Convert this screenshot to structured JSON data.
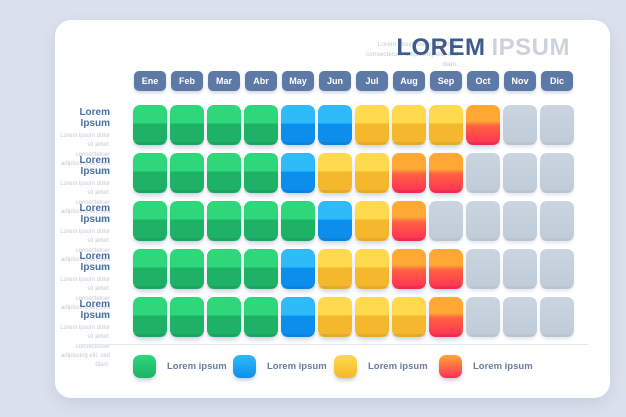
{
  "title": {
    "primary": "LOREM",
    "secondary": "IPSUM"
  },
  "subtitle": "Lorem ipsum dolor sit amet, consectetuer adipiscing elit, sed diam.",
  "months": [
    "Ene",
    "Feb",
    "Mar",
    "Abr",
    "May",
    "Jun",
    "Jul",
    "Aug",
    "Sep",
    "Oct",
    "Nov",
    "Dic"
  ],
  "rows": [
    {
      "label": "Lorem Ipsum",
      "description": "Lorem ipsum dolor sit amet, consectetuer adipiscing elit, sed diam.",
      "cells": [
        "green",
        "green",
        "green",
        "green",
        "blue",
        "blue",
        "yellow",
        "yellow",
        "yellow",
        "orange",
        "gray",
        "gray"
      ]
    },
    {
      "label": "Lorem Ipsum",
      "description": "Lorem ipsum dolor sit amet, consectetuer adipiscing elit, sed diam.",
      "cells": [
        "green",
        "green",
        "green",
        "green",
        "blue",
        "yellow",
        "yellow",
        "orange",
        "orange",
        "gray",
        "gray",
        "gray"
      ]
    },
    {
      "label": "Lorem Ipsum",
      "description": "Lorem ipsum dolor sit amet, consectetuer adipiscing elit, sed diam.",
      "cells": [
        "green",
        "green",
        "green",
        "green",
        "green",
        "blue",
        "yellow",
        "orange",
        "gray",
        "gray",
        "gray",
        "gray"
      ]
    },
    {
      "label": "Lorem Ipsum",
      "description": "Lorem ipsum dolor sit amet, consectetuer adipiscing elit, sed diam.",
      "cells": [
        "green",
        "green",
        "green",
        "green",
        "blue",
        "yellow",
        "yellow",
        "orange",
        "orange",
        "gray",
        "gray",
        "gray"
      ]
    },
    {
      "label": "Lorem Ipsum",
      "description": "Lorem ipsum dolor sit amet, consectetuer adipiscing elit, sed diam.",
      "cells": [
        "green",
        "green",
        "green",
        "green",
        "blue",
        "yellow",
        "yellow",
        "yellow",
        "orange",
        "gray",
        "gray",
        "gray"
      ]
    }
  ],
  "legend": [
    {
      "color": "green",
      "label": "Lorem ipsum"
    },
    {
      "color": "blue",
      "label": "Lorem ipsum"
    },
    {
      "color": "yellow",
      "label": "Lorem ipsum"
    },
    {
      "color": "orange",
      "label": "Lorem ipsum"
    }
  ],
  "colors": {
    "page_bg": "#dce2ed",
    "card_bg": "#ffffff",
    "month_bg": "#5d79a6",
    "title_primary": "#3e5b8c",
    "title_secondary": "#cdd3de",
    "row_label": "#4a70a6",
    "muted": "#c4cad6",
    "legend_text": "#6b7d99",
    "green_top": "#2ed77a",
    "green_bottom": "#1eb267",
    "blue_top": "#2fbaf9",
    "blue_bottom": "#0e8eec",
    "yellow_top": "#ffd94e",
    "yellow_bottom": "#f5b82d",
    "orange_top": "#ffa835",
    "orange_mid": "#ff6242",
    "orange_bottom": "#ff2e55",
    "gray_top": "#cbd5e0",
    "gray_bottom": "#c0cbd8"
  },
  "chart_data": {
    "type": "heatmap",
    "title": "LOREM IPSUM",
    "subtitle": "Lorem ipsum dolor sit amet, consectetuer adipiscing elit, sed diam.",
    "x_categories": [
      "Ene",
      "Feb",
      "Mar",
      "Abr",
      "May",
      "Jun",
      "Jul",
      "Aug",
      "Sep",
      "Oct",
      "Nov",
      "Dic"
    ],
    "y_categories": [
      "Lorem Ipsum",
      "Lorem Ipsum",
      "Lorem Ipsum",
      "Lorem Ipsum",
      "Lorem Ipsum"
    ],
    "cells": [
      [
        "green",
        "green",
        "green",
        "green",
        "blue",
        "blue",
        "yellow",
        "yellow",
        "yellow",
        "orange",
        "gray",
        "gray"
      ],
      [
        "green",
        "green",
        "green",
        "green",
        "blue",
        "yellow",
        "yellow",
        "orange",
        "orange",
        "gray",
        "gray",
        "gray"
      ],
      [
        "green",
        "green",
        "green",
        "green",
        "green",
        "blue",
        "yellow",
        "orange",
        "gray",
        "gray",
        "gray",
        "gray"
      ],
      [
        "green",
        "green",
        "green",
        "green",
        "blue",
        "yellow",
        "yellow",
        "orange",
        "orange",
        "gray",
        "gray",
        "gray"
      ],
      [
        "green",
        "green",
        "green",
        "green",
        "blue",
        "yellow",
        "yellow",
        "yellow",
        "orange",
        "gray",
        "gray",
        "gray"
      ]
    ],
    "value_colors": {
      "green": "#1eb267",
      "blue": "#0e8eec",
      "yellow": "#f5b82d",
      "orange": "#ff2e55",
      "gray": "#c5cfdb"
    },
    "legend_position": "bottom",
    "legend": [
      {
        "label": "Lorem ipsum",
        "color": "#1eb267"
      },
      {
        "label": "Lorem ipsum",
        "color": "#0e8eec"
      },
      {
        "label": "Lorem ipsum",
        "color": "#f5b82d"
      },
      {
        "label": "Lorem ipsum",
        "color": "#ff2e55"
      }
    ],
    "grid": false
  }
}
